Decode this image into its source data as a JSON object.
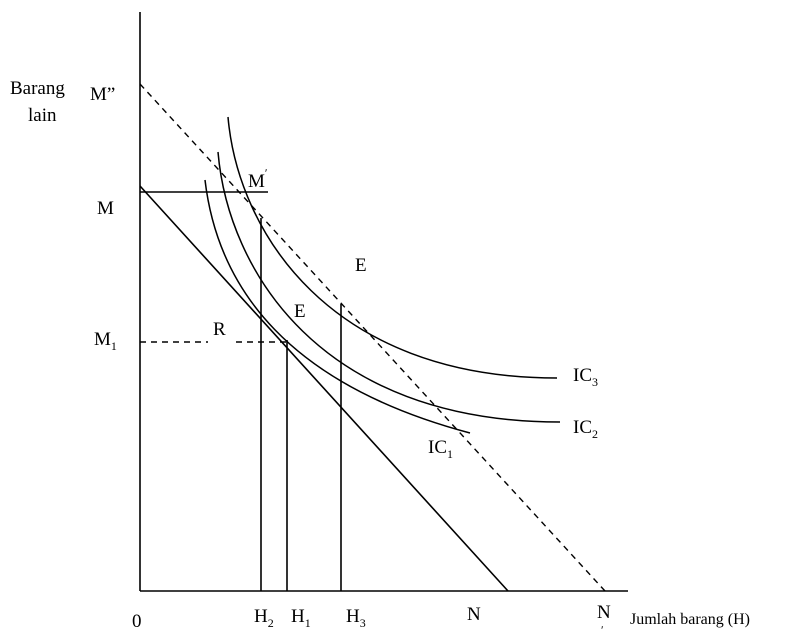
{
  "y_axis_title": [
    "Barang",
    "lain"
  ],
  "x_axis_title": "Jumlah barang (H)",
  "origin": "0",
  "y_labels": {
    "m_double_prime": "M”",
    "m": "M",
    "m1_base": "M",
    "m1_sub": "1",
    "m_prime": "M",
    "m_prime_mark": "ʹ"
  },
  "x_labels": {
    "h2_base": "H",
    "h2_sub": "2",
    "h1_base": "H",
    "h1_sub": "1",
    "h3_base": "H",
    "h3_sub": "3",
    "n": "N",
    "n_prime": "N",
    "n_prime_mark": "ʹ"
  },
  "points": {
    "e_upper": "E",
    "e_lower": "E",
    "r": "R"
  },
  "curves": {
    "ic1_base": "IC",
    "ic1_sub": "1",
    "ic2_base": "IC",
    "ic2_sub": "2",
    "ic3_base": "IC",
    "ic3_sub": "3"
  }
}
